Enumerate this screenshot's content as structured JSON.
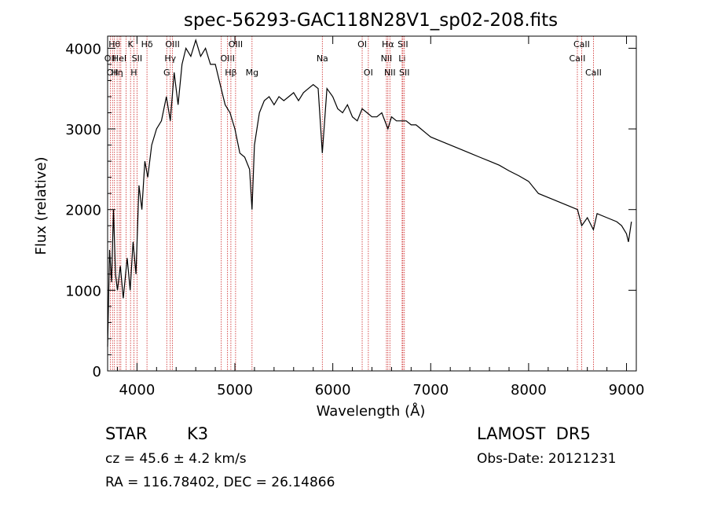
{
  "chart_data": {
    "type": "line",
    "title": "spec-56293-GAC118N28V1_sp02-208.fits",
    "xlabel": "Wavelength (Å)",
    "ylabel": "Flux (relative)",
    "xlim": [
      3700,
      9100
    ],
    "ylim": [
      0,
      4150
    ],
    "xticks": [
      4000,
      5000,
      6000,
      7000,
      8000,
      9000
    ],
    "xtick_labels": [
      "4000",
      "5000",
      "6000",
      "7000",
      "8000",
      "9000"
    ],
    "yticks": [
      0,
      1000,
      2000,
      3000,
      4000
    ],
    "ytick_labels": [
      "0",
      "1000",
      "2000",
      "3000",
      "4000"
    ],
    "grid": false,
    "series": [
      {
        "x": [
          3700,
          3720,
          3740,
          3760,
          3780,
          3800,
          3830,
          3860,
          3900,
          3930,
          3960,
          3990,
          4020,
          4050,
          4080,
          4110,
          4150,
          4200,
          4250,
          4300,
          4340,
          4380,
          4420,
          4460,
          4500,
          4550,
          4600,
          4650,
          4700,
          4750,
          4800,
          4850,
          4900,
          4950,
          5000,
          5050,
          5100,
          5150,
          5175,
          5200,
          5250,
          5300,
          5350,
          5400,
          5450,
          5500,
          5550,
          5600,
          5650,
          5700,
          5750,
          5800,
          5850,
          5893,
          5940,
          6000,
          6050,
          6100,
          6150,
          6200,
          6250,
          6300,
          6350,
          6400,
          6450,
          6500,
          6563,
          6600,
          6650,
          6700,
          6750,
          6800,
          6850,
          6900,
          6950,
          7000,
          7100,
          7200,
          7300,
          7400,
          7500,
          7600,
          7700,
          7800,
          7900,
          8000,
          8100,
          8200,
          8300,
          8400,
          8500,
          8542,
          8600,
          8662,
          8700,
          8800,
          8900,
          8950,
          9000,
          9020,
          9050
        ],
        "y": [
          300,
          1500,
          1100,
          2000,
          1200,
          1000,
          1300,
          900,
          1400,
          1000,
          1600,
          1200,
          2300,
          2000,
          2600,
          2400,
          2800,
          3000,
          3100,
          3400,
          3100,
          3700,
          3300,
          3800,
          4000,
          3900,
          4100,
          3900,
          4000,
          3800,
          3800,
          3550,
          3300,
          3200,
          3000,
          2700,
          2650,
          2500,
          2000,
          2800,
          3200,
          3350,
          3400,
          3300,
          3400,
          3350,
          3400,
          3450,
          3350,
          3450,
          3500,
          3550,
          3500,
          2700,
          3500,
          3400,
          3250,
          3200,
          3300,
          3150,
          3100,
          3250,
          3200,
          3150,
          3150,
          3200,
          3000,
          3150,
          3100,
          3100,
          3100,
          3050,
          3050,
          3000,
          2950,
          2900,
          2850,
          2800,
          2750,
          2700,
          2650,
          2600,
          2550,
          2480,
          2420,
          2350,
          2200,
          2150,
          2100,
          2050,
          2000,
          1800,
          1900,
          1750,
          1950,
          1900,
          1850,
          1800,
          1700,
          1600,
          1850
        ]
      }
    ],
    "lines": [
      {
        "wl": 3727,
        "label": "OII",
        "row": 1
      },
      {
        "wl": 3750,
        "label": "OII",
        "row": 2
      },
      {
        "wl": 3770,
        "label": "Hθ",
        "row": 0
      },
      {
        "wl": 3797,
        "label": "Hη",
        "row": 2
      },
      {
        "wl": 3820,
        "label": "HeI",
        "row": 1
      },
      {
        "wl": 3835,
        "label": "",
        "row": 0
      },
      {
        "wl": 3889,
        "label": "",
        "row": 0
      },
      {
        "wl": 3934,
        "label": "K",
        "row": 0
      },
      {
        "wl": 3968,
        "label": "H",
        "row": 2
      },
      {
        "wl": 4000,
        "label": "SII",
        "row": 1
      },
      {
        "wl": 4102,
        "label": "Hδ",
        "row": 0
      },
      {
        "wl": 4304,
        "label": "G",
        "row": 2
      },
      {
        "wl": 4340,
        "label": "Hγ",
        "row": 1
      },
      {
        "wl": 4363,
        "label": "OIII",
        "row": 0
      },
      {
        "wl": 4861,
        "label": "",
        "row": 0
      },
      {
        "wl": 4925,
        "label": "OIII",
        "row": 1
      },
      {
        "wl": 4959,
        "label": "Hβ",
        "row": 2
      },
      {
        "wl": 5007,
        "label": "OIII",
        "row": 0
      },
      {
        "wl": 5175,
        "label": "Mg",
        "row": 2
      },
      {
        "wl": 5893,
        "label": "Na",
        "row": 1
      },
      {
        "wl": 6300,
        "label": "OI",
        "row": 0
      },
      {
        "wl": 6363,
        "label": "OI",
        "row": 2
      },
      {
        "wl": 6548,
        "label": "NII",
        "row": 1
      },
      {
        "wl": 6563,
        "label": "Hα",
        "row": 0
      },
      {
        "wl": 6583,
        "label": "NII",
        "row": 2
      },
      {
        "wl": 6708,
        "label": "Li",
        "row": 1
      },
      {
        "wl": 6716,
        "label": "SII",
        "row": 0
      },
      {
        "wl": 6731,
        "label": "SII",
        "row": 2
      },
      {
        "wl": 8498,
        "label": "CaII",
        "row": 1
      },
      {
        "wl": 8542,
        "label": "CaII",
        "row": 0
      },
      {
        "wl": 8662,
        "label": "CaII",
        "row": 2
      }
    ]
  },
  "info": {
    "object_class": "STAR",
    "subclass": "K3",
    "redshift": "cz = 45.6 ± 4.2 km/s",
    "coords": "RA = 116.78402, DEC =  26.14866",
    "survey": "LAMOST  DR5",
    "obs_date": "Obs-Date: 20121231"
  }
}
